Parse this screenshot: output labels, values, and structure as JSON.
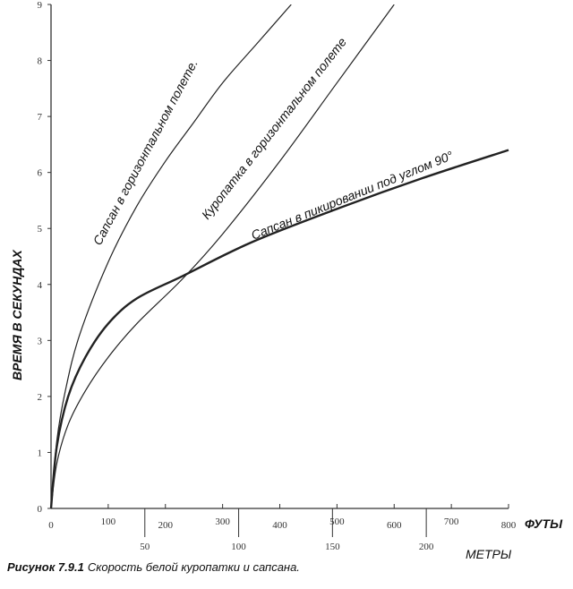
{
  "chart_data": {
    "type": "line",
    "title": "",
    "caption_bold": "Рисунок 7.9.1",
    "caption": "Скорость белой куропатки и сапсана.",
    "xlabel": "ФУТЫ",
    "xlabel2": "МЕТРЫ",
    "ylabel": "ВРЕМЯ В СЕКУНДАХ",
    "xlim": [
      0,
      800
    ],
    "ylim": [
      0,
      9
    ],
    "xticks": [
      "0",
      "100",
      "200",
      "300",
      "400",
      "500",
      "600",
      "700",
      "800"
    ],
    "xticks_m": [
      "50",
      "100",
      "150",
      "200"
    ],
    "yticks": [
      "0",
      "1",
      "2",
      "3",
      "4",
      "5",
      "6",
      "7",
      "8",
      "9"
    ],
    "grid": false,
    "series": [
      {
        "name": "Сапсан в горизонтальном полете.",
        "x": [
          0,
          10,
          25,
          50,
          100,
          150,
          200,
          250,
          300,
          360,
          420
        ],
        "y": [
          0,
          1.2,
          2.1,
          3.1,
          4.4,
          5.4,
          6.2,
          6.9,
          7.6,
          8.3,
          9
        ]
      },
      {
        "name": "Куропатка в горизонтальном полете",
        "x": [
          0,
          10,
          30,
          60,
          100,
          150,
          230,
          300,
          400,
          500,
          600
        ],
        "y": [
          0,
          0.8,
          1.5,
          2.1,
          2.7,
          3.3,
          4.1,
          4.9,
          6.2,
          7.6,
          9
        ]
      },
      {
        "name": "Сапсан в пикировании под углом 90°",
        "x": [
          0,
          10,
          30,
          60,
          100,
          150,
          230,
          350,
          500,
          650,
          800
        ],
        "y": [
          0,
          1.1,
          2.0,
          2.7,
          3.3,
          3.75,
          4.15,
          4.75,
          5.35,
          5.9,
          6.4
        ]
      }
    ]
  }
}
